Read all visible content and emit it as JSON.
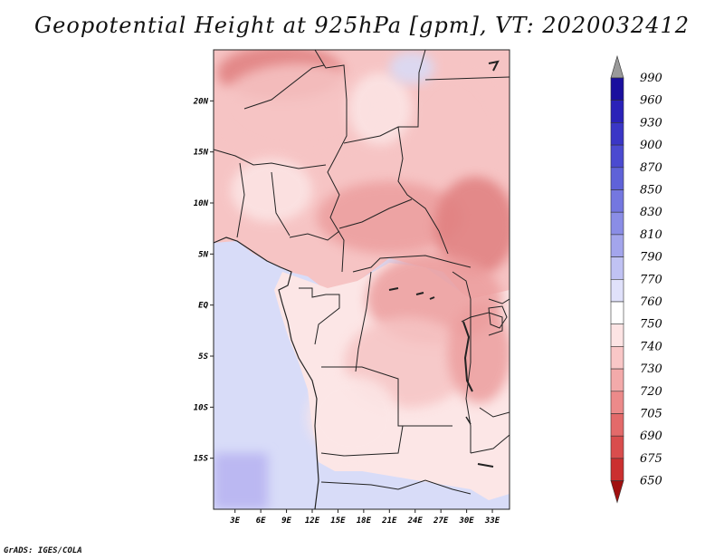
{
  "title": "Geopotential Height at 925hPa [gpm], VT: 2020032412",
  "footer": "GrADS: IGES/COLA",
  "colors": {
    "ocean": "#d8dcf8",
    "ocean_deep": "#bbb8f2",
    "land_light": "#fce6e6",
    "land_mid": "#f6c4c4",
    "land_dark": "#ec9e9e",
    "land_darker": "#e07f7f",
    "border": "#222222"
  },
  "chart_data": {
    "type": "heatmap",
    "title": "Geopotential Height at 925hPa [gpm], VT: 2020032412",
    "variable": "Geopotential Height",
    "level": "925hPa",
    "units": "gpm",
    "valid_time": "2020032412",
    "x_ticks": [
      "3E",
      "6E",
      "9E",
      "12E",
      "15E",
      "18E",
      "21E",
      "24E",
      "27E",
      "30E",
      "33E"
    ],
    "y_ticks": [
      "20N",
      "15N",
      "10N",
      "5N",
      "EQ",
      "5S",
      "10S",
      "15S"
    ],
    "xlim": [
      0.5,
      35
    ],
    "ylim": [
      -20,
      25
    ],
    "colorbar": {
      "levels": [
        990,
        960,
        930,
        900,
        870,
        850,
        830,
        810,
        790,
        770,
        760,
        750,
        740,
        730,
        720,
        705,
        690,
        675,
        650
      ],
      "colors": [
        "#1a0f9e",
        "#2a22b8",
        "#3a36c6",
        "#4b4ad0",
        "#5f62d8",
        "#7477e0",
        "#8a8de6",
        "#a3a5ec",
        "#c0c2f3",
        "#e0e1fa",
        "#ffffff",
        "#fde4e4",
        "#f9c7c7",
        "#f3aaaa",
        "#ec8a8a",
        "#e36a6a",
        "#d94d4d",
        "#cb3030",
        "#b81818"
      ],
      "top_arrow_color": "#9a9a9a",
      "bottom_arrow_color": "#a01010"
    }
  }
}
